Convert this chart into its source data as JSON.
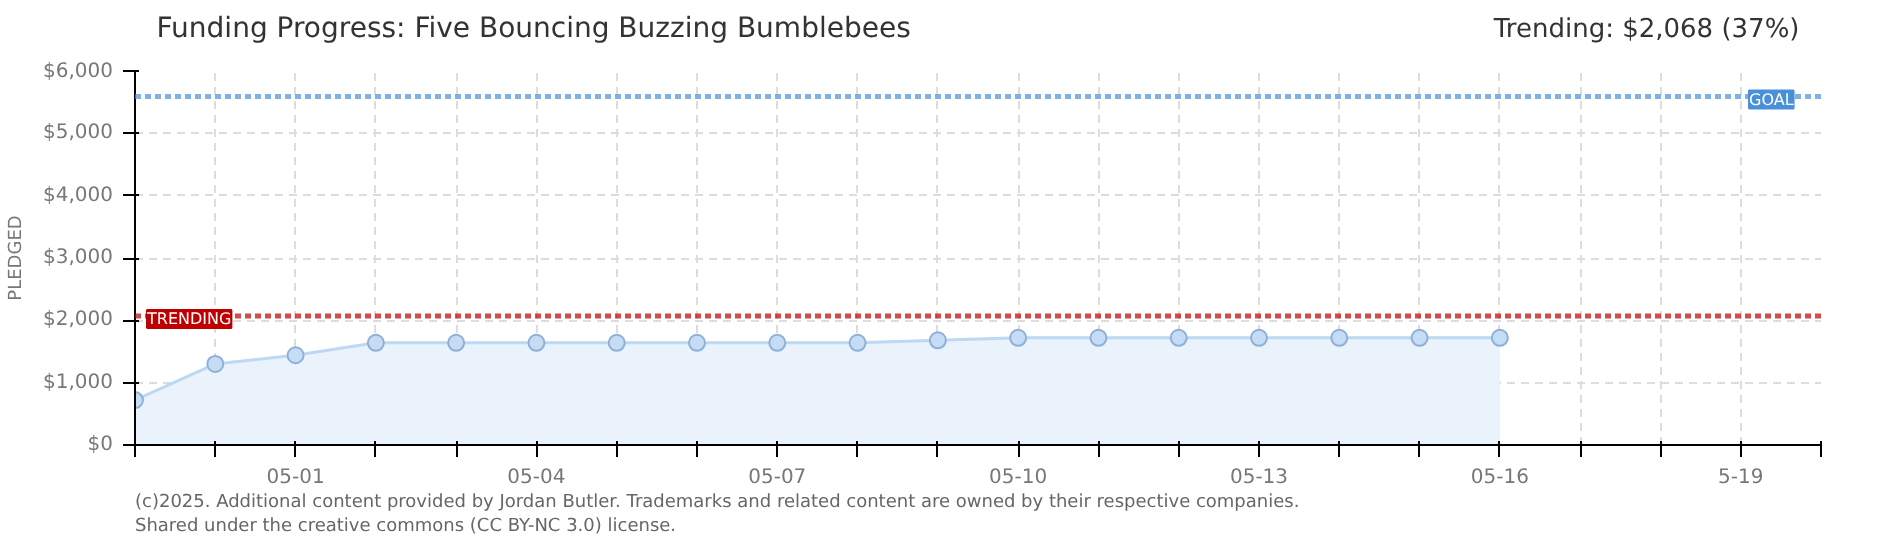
{
  "chart_data": {
    "type": "area",
    "title": "Funding Progress: Five Bouncing Buzzing Bumblebees",
    "subtitle": "Trending: $2,068 (37%)",
    "ylabel": "PLEDGED",
    "x": [
      "2025-04-29",
      "2025-04-30",
      "2025-05-01",
      "2025-05-02",
      "2025-05-03",
      "2025-05-04",
      "2025-05-05",
      "2025-05-06",
      "2025-05-07",
      "2025-05-08",
      "2025-05-09",
      "2025-05-10",
      "2025-05-11",
      "2025-05-12",
      "2025-05-13",
      "2025-05-14",
      "2025-05-15",
      "2025-05-16"
    ],
    "series": [
      {
        "color": "#c5dcf5",
        "values": [
          720,
          1300,
          1440,
          1640,
          1640,
          1640,
          1640,
          1640,
          1640,
          1640,
          1680,
          1720,
          1720,
          1720,
          1720,
          1720,
          1720,
          1720
        ]
      }
    ],
    "xlim": [
      "2025-04-29",
      "2025-05-20"
    ],
    "xticks": [
      {
        "value": "2025-04-29",
        "label": null
      },
      {
        "value": "2025-04-30",
        "label": null
      },
      {
        "value": "2025-05-01",
        "label": "05-01"
      },
      {
        "value": "2025-05-02",
        "label": null
      },
      {
        "value": "2025-05-03",
        "label": null
      },
      {
        "value": "2025-05-04",
        "label": "05-04"
      },
      {
        "value": "2025-05-05",
        "label": null
      },
      {
        "value": "2025-05-06",
        "label": null
      },
      {
        "value": "2025-05-07",
        "label": "05-07"
      },
      {
        "value": "2025-05-08",
        "label": null
      },
      {
        "value": "2025-05-09",
        "label": null
      },
      {
        "value": "2025-05-10",
        "label": "05-10"
      },
      {
        "value": "2025-05-11",
        "label": null
      },
      {
        "value": "2025-05-12",
        "label": null
      },
      {
        "value": "2025-05-13",
        "label": "05-13"
      },
      {
        "value": "2025-05-14",
        "label": null
      },
      {
        "value": "2025-05-15",
        "label": null
      },
      {
        "value": "2025-05-16",
        "label": "05-16"
      },
      {
        "value": "2025-05-17",
        "label": null
      },
      {
        "value": "2025-05-18",
        "label": null
      },
      {
        "value": "2025-05-19",
        "label": "5-19"
      },
      {
        "value": "2025-05-20",
        "label": null
      }
    ],
    "ylim": [
      0,
      6000
    ],
    "yticks": [
      {
        "value": 0,
        "label": "$0"
      },
      {
        "value": 1000,
        "label": "$1,000"
      },
      {
        "value": 2000,
        "label": "$2,000"
      },
      {
        "value": 3000,
        "label": "$3,000"
      },
      {
        "value": 4000,
        "label": "$4,000"
      },
      {
        "value": 5000,
        "label": "$5,000"
      },
      {
        "value": 6000,
        "label": "$6,000"
      }
    ],
    "ref_lines": [
      {
        "axis": "y",
        "value": 5590,
        "label": "GOAL",
        "color": "#4a90d9",
        "line_style": "dotted"
      },
      {
        "axis": "y",
        "value": 2068,
        "label": "TRENDING",
        "color": "#c00000",
        "line_style": "dotted"
      }
    ],
    "annotations": [
      "(c)2025. Additional content provided by Jordan Butler. Trademarks and related content are owned by their respective companies.",
      "Shared under the creative commons (CC BY-NC 3.0) license."
    ],
    "grid": true,
    "marker": "circle"
  }
}
